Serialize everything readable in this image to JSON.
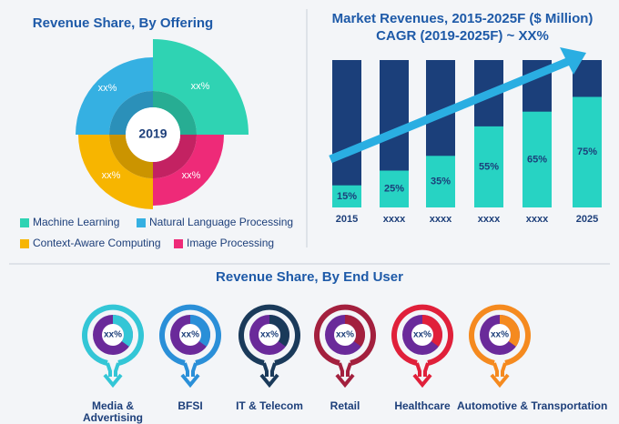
{
  "offering": {
    "title": "Revenue Share, By Offering",
    "center_label": "2019",
    "segments": [
      {
        "name": "Machine Learning",
        "color": "#2fd3b3",
        "label": "xx%"
      },
      {
        "name": "Natural Language Processing",
        "color": "#35b0e2",
        "label": "xx%"
      },
      {
        "name": "Context-Aware Computing",
        "color": "#f7b500",
        "label": "xx%"
      },
      {
        "name": "Image Processing",
        "color": "#ee2a78",
        "label": "xx%"
      }
    ]
  },
  "chart_data": {
    "type": "bar",
    "title": "Market Revenues, 2015-2025F ($ Million)",
    "subtitle": "CAGR (2019-2025F) ~ XX%",
    "categories": [
      "2015",
      "xxxx",
      "xxxx",
      "xxxx",
      "xxxx",
      "2025"
    ],
    "values": [
      15,
      25,
      35,
      55,
      65,
      75
    ],
    "value_labels": [
      "15%",
      "25%",
      "35%",
      "55%",
      "65%",
      "75%"
    ],
    "color": "#27d3c3",
    "track_color": "#1b3f7a",
    "ylim": [
      0,
      100
    ]
  },
  "end_user": {
    "title": "Revenue Share, By End User",
    "items": [
      {
        "name": "Media & Advertising",
        "color": "#33c6d6",
        "label": "xx%"
      },
      {
        "name": "BFSI",
        "color": "#2a8fd8",
        "label": "xx%"
      },
      {
        "name": "IT & Telecom",
        "color": "#1a3a5a",
        "label": "xx%"
      },
      {
        "name": "Retail",
        "color": "#a3203e",
        "label": "xx%"
      },
      {
        "name": "Healthcare",
        "color": "#e0203a",
        "label": "xx%"
      },
      {
        "name": "Automotive & Transportation",
        "color": "#f58a1f",
        "label": "xx%"
      }
    ]
  }
}
